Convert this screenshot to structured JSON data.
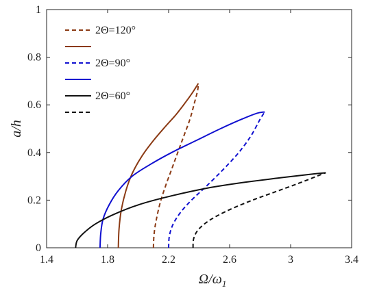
{
  "chart_data": {
    "type": "line",
    "title": "",
    "xlabel": "Ω/ω",
    "xlabel_sub": "1",
    "ylabel": "a/h",
    "xlim": [
      1.4,
      3.4
    ],
    "ylim": [
      0,
      1
    ],
    "xticks": [
      1.4,
      1.8,
      2.2,
      2.6,
      3,
      3.4
    ],
    "xtick_labels": [
      "1.4",
      "1.8",
      "2.2",
      "2.6",
      "3",
      "3.4"
    ],
    "yticks": [
      0,
      0.2,
      0.4,
      0.6,
      0.8,
      1
    ],
    "ytick_labels": [
      "0",
      "0.2",
      "0.4",
      "0.6",
      "0.8",
      "1"
    ],
    "grid": false,
    "legend_position": "top-left",
    "legend_items": [
      {
        "label": "2Θ=120°",
        "color": "#8B3A14",
        "dash": true
      },
      {
        "label": "",
        "color": "#8B3A14",
        "dash": false
      },
      {
        "label": "2Θ=90°",
        "color": "#1010D0",
        "dash": true
      },
      {
        "label": "",
        "color": "#1010D0",
        "dash": false
      },
      {
        "label": "2Θ=60°",
        "color": "#111111",
        "dash": false
      },
      {
        "label": "",
        "color": "#111111",
        "dash": true
      }
    ],
    "series": [
      {
        "color": "#8B3A14",
        "dash": false,
        "x": [
          1.87,
          1.875,
          1.89,
          1.92,
          1.96,
          2.02,
          2.1,
          2.18,
          2.25,
          2.31,
          2.355,
          2.385,
          2.395
        ],
        "y": [
          0,
          0.08,
          0.16,
          0.24,
          0.31,
          0.38,
          0.45,
          0.51,
          0.56,
          0.61,
          0.65,
          0.68,
          0.69
        ]
      },
      {
        "color": "#8B3A14",
        "dash": true,
        "x": [
          2.1,
          2.105,
          2.12,
          2.145,
          2.18,
          2.22,
          2.26,
          2.3,
          2.34,
          2.37,
          2.39,
          2.395
        ],
        "y": [
          0,
          0.06,
          0.12,
          0.19,
          0.26,
          0.33,
          0.4,
          0.47,
          0.54,
          0.61,
          0.66,
          0.69
        ]
      },
      {
        "color": "#1010D0",
        "dash": false,
        "x": [
          1.75,
          1.755,
          1.77,
          1.81,
          1.87,
          1.96,
          2.08,
          2.22,
          2.38,
          2.54,
          2.68,
          2.78,
          2.83
        ],
        "y": [
          0,
          0.06,
          0.12,
          0.18,
          0.24,
          0.3,
          0.35,
          0.4,
          0.45,
          0.5,
          0.54,
          0.565,
          0.57
        ]
      },
      {
        "color": "#1010D0",
        "dash": true,
        "x": [
          2.2,
          2.205,
          2.23,
          2.28,
          2.35,
          2.45,
          2.56,
          2.66,
          2.74,
          2.8,
          2.83
        ],
        "y": [
          0,
          0.05,
          0.1,
          0.15,
          0.2,
          0.26,
          0.33,
          0.4,
          0.47,
          0.54,
          0.57
        ]
      },
      {
        "color": "#111111",
        "dash": false,
        "x": [
          1.59,
          1.6,
          1.64,
          1.72,
          1.84,
          2.0,
          2.2,
          2.45,
          2.7,
          2.95,
          3.15,
          3.23
        ],
        "y": [
          0,
          0.03,
          0.06,
          0.1,
          0.14,
          0.18,
          0.215,
          0.25,
          0.275,
          0.295,
          0.31,
          0.315
        ]
      },
      {
        "color": "#111111",
        "dash": true,
        "x": [
          2.36,
          2.365,
          2.4,
          2.48,
          2.6,
          2.75,
          2.9,
          3.05,
          3.17,
          3.23
        ],
        "y": [
          0,
          0.04,
          0.08,
          0.12,
          0.16,
          0.2,
          0.235,
          0.27,
          0.3,
          0.315
        ]
      }
    ]
  }
}
